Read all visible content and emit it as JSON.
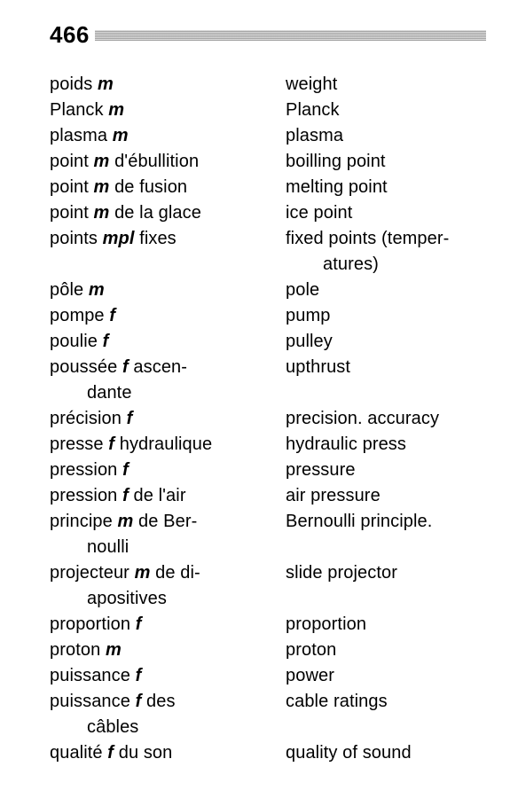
{
  "page_number": "466",
  "typography": {
    "body_fontsize_pt": 20,
    "pagenum_fontsize_pt": 26,
    "font_family": "Helvetica/Arial sans-serif",
    "body_weight": 400,
    "gender_marker_style": "italic bold"
  },
  "colors": {
    "text": "#000000",
    "background": "#ffffff",
    "header_bar": "#808080"
  },
  "entries": [
    {
      "fr_pre": "poids ",
      "fr_g": "m",
      "fr_post": "",
      "fr_cont": "",
      "en": "weight",
      "en_cont": ""
    },
    {
      "fr_pre": "Planck ",
      "fr_g": "m",
      "fr_post": "",
      "fr_cont": "",
      "en": " Planck",
      "en_cont": ""
    },
    {
      "fr_pre": "plasma ",
      "fr_g": "m",
      "fr_post": "",
      "fr_cont": "",
      "en": "plasma",
      "en_cont": ""
    },
    {
      "fr_pre": "point ",
      "fr_g": "m",
      "fr_post": " d'ébullition",
      "fr_cont": "",
      "en": "boilling point",
      "en_cont": ""
    },
    {
      "fr_pre": "point ",
      "fr_g": "m",
      "fr_post": " de fusion",
      "fr_cont": "",
      "en": "melting point",
      "en_cont": ""
    },
    {
      "fr_pre": "point ",
      "fr_g": "m",
      "fr_post": " de la glace",
      "fr_cont": "",
      "en": "ice point",
      "en_cont": ""
    },
    {
      "fr_pre": "points ",
      "fr_g": "mpl",
      "fr_post": " fixes",
      "fr_cont": "",
      "en": "fixed points (temper-",
      "en_cont": "atures)"
    },
    {
      "fr_pre": "pôle ",
      "fr_g": "m",
      "fr_post": "",
      "fr_cont": "",
      "en": "pole",
      "en_cont": ""
    },
    {
      "fr_pre": "pompe ",
      "fr_g": "f",
      "fr_post": "",
      "fr_cont": "",
      "en": "pump",
      "en_cont": ""
    },
    {
      "fr_pre": "poulie ",
      "fr_g": "f",
      "fr_post": "",
      "fr_cont": "",
      "en": "pulley",
      "en_cont": ""
    },
    {
      "fr_pre": "poussée ",
      "fr_g": "f",
      "fr_post": " ascen-",
      "fr_cont": "dante",
      "en": "upthrust",
      "en_cont": ""
    },
    {
      "fr_pre": "précision ",
      "fr_g": "f",
      "fr_post": "",
      "fr_cont": "",
      "en": "precision. accuracy",
      "en_cont": ""
    },
    {
      "fr_pre": "presse ",
      "fr_g": "f",
      "fr_post": " hydraulique",
      "fr_cont": "",
      "en": "hydraulic press",
      "en_cont": ""
    },
    {
      "fr_pre": "pression ",
      "fr_g": "f",
      "fr_post": "",
      "fr_cont": "",
      "en": "pressure",
      "en_cont": ""
    },
    {
      "fr_pre": "pression ",
      "fr_g": "f",
      "fr_post": " de l'air",
      "fr_cont": "",
      "en": "air pressure",
      "en_cont": ""
    },
    {
      "fr_pre": "principe ",
      "fr_g": "m",
      "fr_post": " de Ber-",
      "fr_cont": "noulli",
      "en": "Bernoulli principle.",
      "en_cont": ""
    },
    {
      "fr_pre": "projecteur ",
      "fr_g": "m",
      "fr_post": " de di-",
      "fr_cont": "apositives",
      "en": "slide projector",
      "en_cont": ""
    },
    {
      "fr_pre": "proportion ",
      "fr_g": "f",
      "fr_post": "",
      "fr_cont": "",
      "en": "proportion",
      "en_cont": ""
    },
    {
      "fr_pre": "proton ",
      "fr_g": "m",
      "fr_post": "",
      "fr_cont": "",
      "en": "proton",
      "en_cont": ""
    },
    {
      "fr_pre": "puissance ",
      "fr_g": "f",
      "fr_post": "",
      "fr_cont": "",
      "en": "power",
      "en_cont": ""
    },
    {
      "fr_pre": "puissance ",
      "fr_g": "f",
      "fr_post": " des",
      "fr_cont": "câbles",
      "en": "cable ratings",
      "en_cont": ""
    },
    {
      "fr_pre": "qualité ",
      "fr_g": "f",
      "fr_post": " du son",
      "fr_cont": "",
      "en": "quality of sound",
      "en_cont": ""
    }
  ],
  "justified_fr_rows": [
    6,
    10,
    15,
    16,
    20
  ]
}
